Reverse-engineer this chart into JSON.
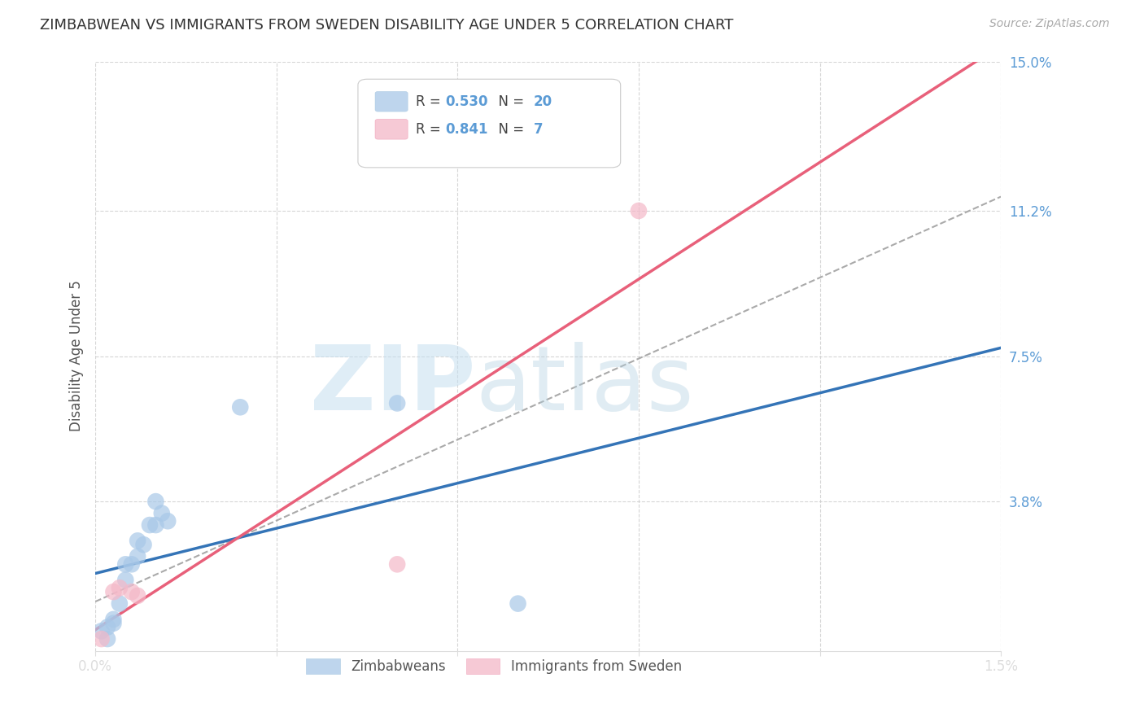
{
  "title": "ZIMBABWEAN VS IMMIGRANTS FROM SWEDEN DISABILITY AGE UNDER 5 CORRELATION CHART",
  "source": "Source: ZipAtlas.com",
  "ylabel": "Disability Age Under 5",
  "xlim": [
    0.0,
    0.015
  ],
  "ylim": [
    0.0,
    0.15
  ],
  "xticks": [
    0.0,
    0.003,
    0.006,
    0.009,
    0.012,
    0.015
  ],
  "xtick_labels": [
    "0.0%",
    "",
    "",
    "",
    "",
    "1.5%"
  ],
  "ytick_labels": [
    "15.0%",
    "11.2%",
    "7.5%",
    "3.8%"
  ],
  "yticks": [
    0.15,
    0.112,
    0.075,
    0.038
  ],
  "zimbabweans_x": [
    0.0001,
    0.0002,
    0.0002,
    0.0003,
    0.0003,
    0.0004,
    0.0005,
    0.0005,
    0.0006,
    0.0007,
    0.0007,
    0.0008,
    0.0009,
    0.001,
    0.001,
    0.0011,
    0.0012,
    0.0024,
    0.005,
    0.007
  ],
  "zimbabweans_y": [
    0.005,
    0.003,
    0.006,
    0.008,
    0.007,
    0.012,
    0.018,
    0.022,
    0.022,
    0.024,
    0.028,
    0.027,
    0.032,
    0.032,
    0.038,
    0.035,
    0.033,
    0.062,
    0.063,
    0.012
  ],
  "sweden_x": [
    0.0001,
    0.0003,
    0.0004,
    0.0006,
    0.0007,
    0.005,
    0.009
  ],
  "sweden_y": [
    0.003,
    0.015,
    0.016,
    0.015,
    0.014,
    0.022,
    0.112
  ],
  "zim_color": "#a8c8e8",
  "sweden_color": "#f4b8c8",
  "zim_line_color": "#3474b7",
  "sweden_line_color": "#e8607a",
  "zim_r": 0.53,
  "zim_n": 20,
  "sweden_r": 0.841,
  "sweden_n": 7,
  "legend_zim": "Zimbabweans",
  "legend_sweden": "Immigrants from Sweden",
  "background_color": "#ffffff",
  "grid_color": "#cccccc",
  "title_color": "#333333",
  "source_color": "#aaaaaa",
  "axis_label_color": "#5b9bd5",
  "tick_label_color": "#5b9bd5"
}
